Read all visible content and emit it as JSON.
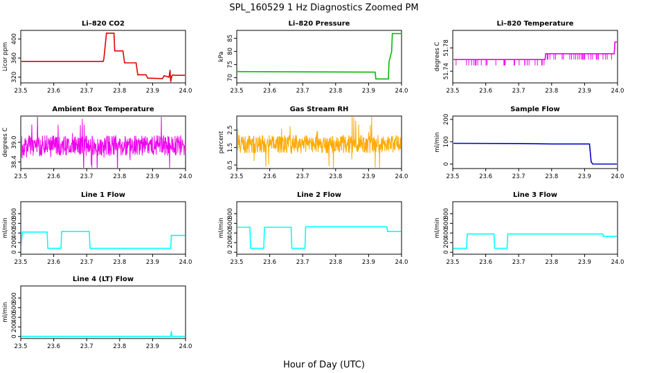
{
  "figure": {
    "title": "SPL_160529  1 Hz Diagnostics Zoomed PM",
    "xlabel": "Hour of Day (UTC)"
  },
  "chart_data": [
    {
      "type": "line",
      "title": "Li–820 CO2",
      "ylabel": "Licor ppm",
      "color": "#dd0000",
      "xlim": [
        23.5,
        24.0
      ],
      "ylim": [
        308,
        418
      ],
      "yticks": [
        "320",
        "360",
        "400"
      ],
      "ytick_values": [
        320,
        360,
        400
      ],
      "xticks": [
        "23.5",
        "23.6",
        "23.7",
        "23.8",
        "23.9",
        "24.0"
      ],
      "series": [
        {
          "x": [
            23.5,
            23.75,
            23.752,
            23.76,
            23.772,
            23.783,
            23.785,
            23.81,
            23.815,
            23.85,
            23.855,
            23.88,
            23.885,
            23.93,
            23.935,
            23.95,
            23.953,
            23.955,
            23.958,
            23.962,
            23.965,
            24.0
          ],
          "y": [
            353,
            353,
            358,
            412,
            412,
            412,
            375,
            375,
            350,
            350,
            325,
            325,
            318,
            317,
            323,
            320,
            335,
            310,
            322,
            325,
            324,
            324
          ]
        }
      ]
    },
    {
      "type": "line",
      "title": "Li–820 Pressure",
      "ylabel": "kPa",
      "color": "#00bb00",
      "xlim": [
        23.5,
        24.0
      ],
      "ylim": [
        68,
        88
      ],
      "yticks": [
        "70",
        "75",
        "80",
        "85"
      ],
      "ytick_values": [
        70,
        75,
        80,
        85
      ],
      "xticks": [
        "23.5",
        "23.6",
        "23.7",
        "23.8",
        "23.9",
        "24.0"
      ],
      "series": [
        {
          "x": [
            23.5,
            23.92,
            23.922,
            23.96,
            23.962,
            23.97,
            23.972,
            24.0
          ],
          "y": [
            72.3,
            72.1,
            69.5,
            69.5,
            76,
            80,
            86.8,
            86.8
          ]
        }
      ]
    },
    {
      "type": "line",
      "title": "Li–820 Temperature",
      "ylabel": "degrees C",
      "color": "#ee00ee",
      "xlim": [
        23.5,
        24.0
      ],
      "ylim": [
        51.72,
        51.81
      ],
      "yticks": [
        "51.74",
        "51.78"
      ],
      "ytick_values": [
        51.74,
        51.78
      ],
      "xticks": [
        "23.5",
        "23.6",
        "23.7",
        "23.8",
        "23.9",
        "24.0"
      ],
      "series": [
        {
          "x": [
            23.5,
            23.78,
            23.782,
            23.99,
            23.992,
            24.0
          ],
          "y": [
            51.76,
            51.76,
            51.77,
            51.77,
            51.79,
            51.79
          ]
        }
      ]
    },
    {
      "type": "line",
      "title": "Ambient Box Temperature",
      "ylabel": "degrees C",
      "color": "#ee00ee",
      "xlim": [
        23.5,
        24.0
      ],
      "ylim": [
        38.2,
        39.8
      ],
      "yticks": [
        "38.4",
        "39.0"
      ],
      "ytick_values": [
        38.4,
        39.0
      ],
      "xticks": [
        "23.5",
        "23.6",
        "23.7",
        "23.8",
        "23.9",
        "24.0"
      ],
      "series": [
        {
          "x": [
            23.5,
            24.0
          ],
          "y": [
            38.9,
            38.9
          ]
        }
      ]
    },
    {
      "type": "line",
      "title": "Gas Stream RH",
      "ylabel": "percent",
      "color": "#ffaa00",
      "xlim": [
        23.5,
        24.0
      ],
      "ylim": [
        0.3,
        3.3
      ],
      "yticks": [
        "0.5",
        "1.5",
        "2.5"
      ],
      "ytick_values": [
        0.5,
        1.5,
        2.5
      ],
      "xticks": [
        "23.5",
        "23.6",
        "23.7",
        "23.8",
        "23.9",
        "24.0"
      ],
      "series": [
        {
          "x": [
            23.5,
            24.0
          ],
          "y": [
            1.7,
            1.7
          ]
        }
      ]
    },
    {
      "type": "line",
      "title": "Sample Flow",
      "ylabel": "ml/min",
      "color": "#0000cc",
      "xlim": [
        23.5,
        24.0
      ],
      "ylim": [
        -20,
        215
      ],
      "yticks": [
        "0",
        "100",
        "200"
      ],
      "ytick_values": [
        0,
        100,
        200
      ],
      "xticks": [
        "23.5",
        "23.6",
        "23.7",
        "23.8",
        "23.9",
        "24.0"
      ],
      "series": [
        {
          "x": [
            23.5,
            23.7,
            23.8,
            23.915,
            23.92,
            23.925,
            24.0
          ],
          "y": [
            93,
            92,
            90,
            90,
            10,
            0,
            0
          ]
        }
      ]
    },
    {
      "type": "line",
      "title": "Line 1 Flow",
      "ylabel": "ml/min",
      "color": "#00ffff",
      "xlim": [
        23.5,
        24.0
      ],
      "ylim": [
        -40,
        1050
      ],
      "yticks": [
        "0",
        "200",
        "400",
        "600",
        "800"
      ],
      "ytick_values": [
        0,
        200,
        400,
        600,
        800
      ],
      "xticks": [
        "23.5",
        "23.6",
        "23.7",
        "23.8",
        "23.9",
        "24.0"
      ],
      "series": [
        {
          "x": [
            23.5,
            23.505,
            23.58,
            23.582,
            23.622,
            23.624,
            23.708,
            23.71,
            23.955,
            23.957,
            24.0
          ],
          "y": [
            80,
            420,
            420,
            80,
            80,
            430,
            430,
            80,
            80,
            350,
            350
          ]
        }
      ]
    },
    {
      "type": "line",
      "title": "Line 2 Flow",
      "ylabel": "ml/min",
      "color": "#00ffff",
      "xlim": [
        23.5,
        24.0
      ],
      "ylim": [
        -40,
        1050
      ],
      "yticks": [
        "0",
        "200",
        "400",
        "600",
        "800"
      ],
      "ytick_values": [
        0,
        200,
        400,
        600,
        800
      ],
      "xticks": [
        "23.5",
        "23.6",
        "23.7",
        "23.8",
        "23.9",
        "24.0"
      ],
      "series": [
        {
          "x": [
            23.5,
            23.54,
            23.542,
            23.582,
            23.584,
            23.665,
            23.667,
            23.707,
            23.709,
            23.955,
            23.958,
            24.0
          ],
          "y": [
            520,
            520,
            80,
            80,
            520,
            520,
            80,
            80,
            530,
            530,
            430,
            430
          ]
        }
      ]
    },
    {
      "type": "line",
      "title": "Line 3 Flow",
      "ylabel": "ml/min",
      "color": "#00ffff",
      "xlim": [
        23.5,
        24.0
      ],
      "ylim": [
        -40,
        1050
      ],
      "yticks": [
        "0",
        "200",
        "400",
        "600",
        "800"
      ],
      "ytick_values": [
        0,
        200,
        400,
        600,
        800
      ],
      "xticks": [
        "23.5",
        "23.6",
        "23.7",
        "23.8",
        "23.9",
        "24.0"
      ],
      "series": [
        {
          "x": [
            23.5,
            23.502,
            23.542,
            23.544,
            23.625,
            23.627,
            23.665,
            23.667,
            23.955,
            23.957,
            24.0
          ],
          "y": [
            80,
            80,
            80,
            380,
            380,
            80,
            80,
            380,
            380,
            330,
            330
          ]
        }
      ]
    },
    {
      "type": "line",
      "title": "Line 4 (LT) Flow",
      "ylabel": "ml/min",
      "color": "#00ffff",
      "xlim": [
        23.5,
        24.0
      ],
      "ylim": [
        -40,
        1050
      ],
      "yticks": [
        "0",
        "200",
        "400",
        "600",
        "800"
      ],
      "ytick_values": [
        0,
        200,
        400,
        600,
        800
      ],
      "xticks": [
        "23.5",
        "23.6",
        "23.7",
        "23.8",
        "23.9",
        "24.0"
      ],
      "series": [
        {
          "x": [
            23.5,
            23.955,
            23.957,
            23.959,
            24.0
          ],
          "y": [
            5,
            5,
            110,
            5,
            5
          ]
        }
      ]
    }
  ]
}
